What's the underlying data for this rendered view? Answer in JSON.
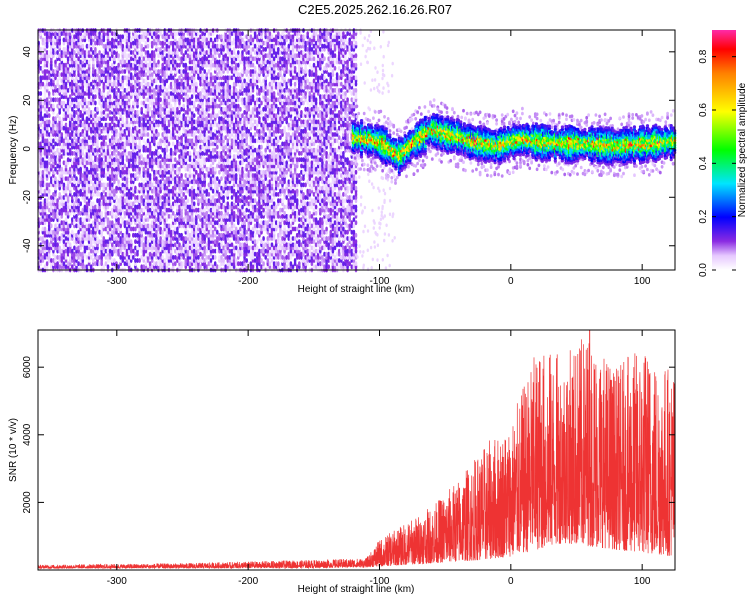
{
  "figure_title": "C2E5.2025.262.16.26.R07",
  "chart_data": [
    {
      "type": "heatmap",
      "xlabel": "Height of straight line (km)",
      "ylabel": "Frequency (Hz)",
      "xlim": [
        -360,
        125
      ],
      "ylim": [
        -50,
        49
      ],
      "xticks": [
        -300,
        -200,
        -100,
        0,
        100
      ],
      "yticks": [
        -40,
        -20,
        0,
        20,
        40
      ],
      "colorbar": {
        "label": "Normalized spectral amplitude",
        "range": [
          0,
          0.9
        ],
        "ticks": [
          0.0,
          0.2,
          0.4,
          0.6,
          0.8
        ],
        "tick_labels": [
          "0.0",
          "0.2",
          "0.4",
          "0.6",
          "0.8"
        ]
      },
      "regions": [
        {
          "name": "noise",
          "x_range": [
            -360,
            -118
          ],
          "f_range": [
            -50,
            49
          ],
          "amplitude": [
            0.02,
            0.12
          ]
        },
        {
          "name": "signal",
          "x_range": [
            -120,
            125
          ],
          "center_freq_hz": 2,
          "bandwidth_hz": 8,
          "peak_amplitude": 0.9
        }
      ],
      "signal_track": {
        "x": [
          -120,
          -100,
          -85,
          -75,
          -60,
          -50,
          -40,
          -30,
          -20,
          -10,
          0,
          10,
          20,
          40,
          60,
          80,
          100,
          125
        ],
        "f": [
          5,
          3,
          -3,
          2,
          8,
          6,
          5,
          3,
          2,
          1,
          3,
          4,
          3,
          2,
          2,
          1,
          2,
          3
        ]
      }
    },
    {
      "type": "line",
      "xlabel": "Height of straight line (km)",
      "ylabel": "SNR (10 * v/v)",
      "xlim": [
        -360,
        125
      ],
      "ylim": [
        0,
        7100
      ],
      "xticks": [
        -300,
        -200,
        -100,
        0,
        100
      ],
      "yticks": [
        2000,
        4000,
        6000
      ],
      "color": "#ee3333",
      "envelope": {
        "x": [
          -360,
          -250,
          -150,
          -110,
          -100,
          -80,
          -60,
          -40,
          -20,
          0,
          20,
          40,
          60,
          80,
          100,
          125
        ],
        "upper": [
          150,
          200,
          300,
          350,
          900,
          1400,
          1900,
          2700,
          3700,
          4400,
          6600,
          6400,
          7100,
          6000,
          6700,
          6000
        ],
        "lower": [
          50,
          50,
          60,
          80,
          100,
          150,
          200,
          250,
          300,
          400,
          600,
          800,
          700,
          600,
          500,
          400
        ]
      },
      "peak": {
        "x": 60,
        "y": 7100
      }
    }
  ]
}
